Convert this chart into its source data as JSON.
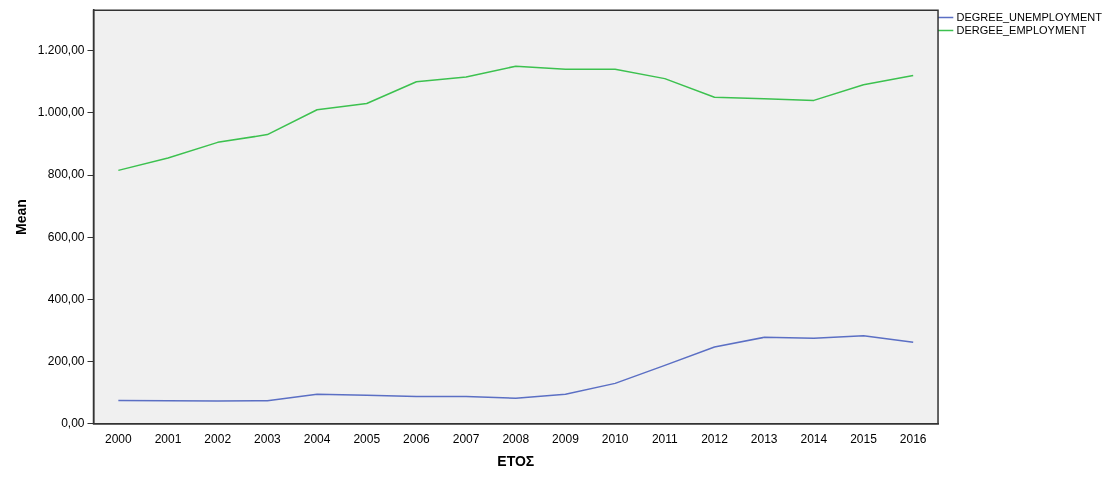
{
  "chart_data": {
    "type": "line",
    "xlabel": "ΕΤΟΣ",
    "ylabel": "Mean",
    "categories": [
      "2000",
      "2001",
      "2002",
      "2003",
      "2004",
      "2005",
      "2006",
      "2007",
      "2008",
      "2009",
      "2010",
      "2011",
      "2012",
      "2013",
      "2014",
      "2015",
      "2016"
    ],
    "series": [
      {
        "name": "DEGREE_UNEMPLOYMENT",
        "color": "#5b6fc4",
        "values": [
          75,
          74,
          73,
          74,
          95,
          92,
          88,
          88,
          82,
          95,
          130,
          188,
          247,
          278,
          275,
          283,
          262
        ]
      },
      {
        "name": "DERGEE_EMPLOYMENT",
        "color": "#3cc14f",
        "values": [
          815,
          855,
          905,
          930,
          1010,
          1030,
          1100,
          1115,
          1150,
          1140,
          1140,
          1110,
          1050,
          1045,
          1040,
          1090,
          1120
        ]
      }
    ],
    "ylim": [
      0,
      1330
    ],
    "yticks": [
      {
        "value": 0,
        "label": "0,00"
      },
      {
        "value": 200,
        "label": "200,00"
      },
      {
        "value": 400,
        "label": "400,00"
      },
      {
        "value": 600,
        "label": "600,00"
      },
      {
        "value": 800,
        "label": "800,00"
      },
      {
        "value": 1000,
        "label": "1.000,00"
      },
      {
        "value": 1200,
        "label": "1.200,00"
      }
    ],
    "grid": false,
    "legend": "top right",
    "marker": "none",
    "line_style": "solid"
  }
}
